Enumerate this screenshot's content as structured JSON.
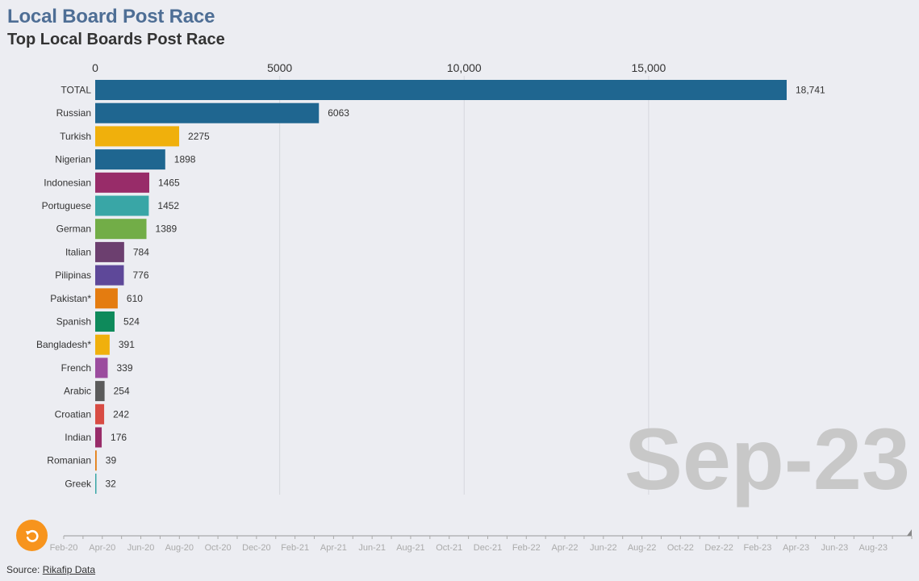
{
  "title": "Local Board Post Race",
  "subtitle": "Top Local Boards Post Race",
  "colors": {
    "title": "#4e6e95",
    "replay_button": "#f7941d",
    "grid": "#d6d7dd",
    "period_watermark": "#c8c8c8"
  },
  "source": {
    "prefix": "Source: ",
    "link_label": "Rikafip Data"
  },
  "controls": {
    "replay_icon": "replay-icon"
  },
  "chart_data": {
    "type": "bar",
    "orientation": "horizontal",
    "current_period": "Sep-23",
    "xlim": [
      0,
      18741
    ],
    "x_ticks": [
      {
        "value": 0,
        "label": "0"
      },
      {
        "value": 5000,
        "label": "5000"
      },
      {
        "value": 10000,
        "label": "10,000"
      },
      {
        "value": 15000,
        "label": "15,000"
      }
    ],
    "categories": [
      "TOTAL",
      "Russian",
      "Turkish",
      "Nigerian",
      "Indonesian",
      "Portuguese",
      "German",
      "Italian",
      "Pilipinas",
      "Pakistan*",
      "Spanish",
      "Bangladesh*",
      "French",
      "Arabic",
      "Croatian",
      "Indian",
      "Romanian",
      "Greek"
    ],
    "values": [
      18741,
      6063,
      2275,
      1898,
      1465,
      1452,
      1389,
      784,
      776,
      610,
      524,
      391,
      339,
      254,
      242,
      176,
      39,
      32
    ],
    "value_labels": [
      "18,741",
      "6063",
      "2275",
      "1898",
      "1465",
      "1452",
      "1389",
      "784",
      "776",
      "610",
      "524",
      "391",
      "339",
      "254",
      "242",
      "176",
      "39",
      "32"
    ],
    "bar_colors": [
      "#1f6690",
      "#1f6690",
      "#f0b00c",
      "#1f6690",
      "#982c69",
      "#39a6a6",
      "#72ad47",
      "#6c3f6f",
      "#5e4899",
      "#e47c10",
      "#0e8a5b",
      "#f0b00c",
      "#9b4c9e",
      "#5b5b5b",
      "#d84c44",
      "#982c69",
      "#e47c10",
      "#39a6a6"
    ],
    "timeline": {
      "labels": [
        "Feb-20",
        "Apr-20",
        "Jun-20",
        "Aug-20",
        "Oct-20",
        "Dec-20",
        "Feb-21",
        "Apr-21",
        "Jun-21",
        "Aug-21",
        "Oct-21",
        "Dec-21",
        "Feb-22",
        "Apr-22",
        "Jun-22",
        "Aug-22",
        "Oct-22",
        "Dez-22",
        "Feb-23",
        "Apr-23",
        "Jun-23",
        "Aug-23"
      ],
      "progress": 1.0
    }
  }
}
